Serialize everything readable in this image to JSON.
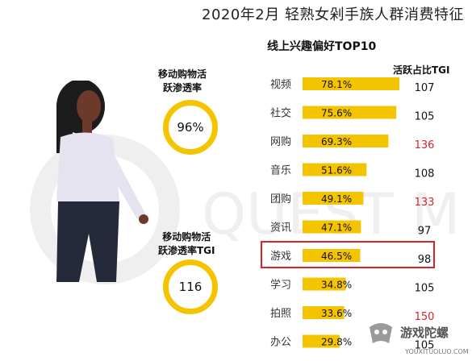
{
  "header": {
    "title": "2020年2月 轻熟女剁手族人群消费特征",
    "subtitle": "线上兴趣偏好TOP10",
    "column_header": "活跃占比TGI"
  },
  "metrics": [
    {
      "label_line1": "移动购物活",
      "label_line2": "跃渗透率",
      "value": "96%"
    },
    {
      "label_line1": "移动购物活",
      "label_line2": "跃渗透率TGI",
      "value": "116"
    }
  ],
  "watermark": {
    "text": "QUEST M"
  },
  "logo": {
    "text": "游戏陀螺",
    "url": "YOUXITUOLUO.COM"
  },
  "colors": {
    "bar": "#F5C400",
    "ring": "#F5C400",
    "tgi_high": "#d8232a",
    "tgi_normal": "#111111",
    "highlight": "#d8232a"
  },
  "chart_data": {
    "type": "bar",
    "orientation": "horizontal",
    "title": "线上兴趣偏好TOP10",
    "categories": [
      "视频",
      "社交",
      "网购",
      "音乐",
      "团购",
      "资讯",
      "游戏",
      "学习",
      "拍照",
      "办公"
    ],
    "values": [
      78.1,
      75.6,
      69.3,
      51.6,
      49.1,
      47.1,
      46.5,
      34.8,
      33.6,
      29.8
    ],
    "value_labels": [
      "78.1%",
      "75.6%",
      "69.3%",
      "51.6%",
      "49.1%",
      "47.1%",
      "46.5%",
      "34.8%",
      "33.6%",
      "29.8%"
    ],
    "tgi_header": "活跃占比TGI",
    "tgi": [
      107,
      105,
      136,
      108,
      133,
      97,
      98,
      105,
      150,
      105
    ],
    "tgi_highlighted": [
      false,
      false,
      true,
      false,
      true,
      false,
      false,
      false,
      true,
      false
    ],
    "highlighted_category": "游戏",
    "xlim": [
      0,
      100
    ],
    "grid": false,
    "legend": "none"
  }
}
